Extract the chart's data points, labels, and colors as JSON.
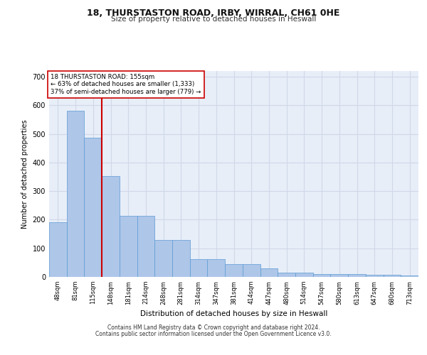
{
  "title1": "18, THURSTASTON ROAD, IRBY, WIRRAL, CH61 0HE",
  "title2": "Size of property relative to detached houses in Heswall",
  "xlabel": "Distribution of detached houses by size in Heswall",
  "ylabel": "Number of detached properties",
  "footnote1": "Contains HM Land Registry data © Crown copyright and database right 2024.",
  "footnote2": "Contains public sector information licensed under the Open Government Licence v3.0.",
  "categories": [
    "48sqm",
    "81sqm",
    "115sqm",
    "148sqm",
    "181sqm",
    "214sqm",
    "248sqm",
    "281sqm",
    "314sqm",
    "347sqm",
    "381sqm",
    "414sqm",
    "447sqm",
    "480sqm",
    "514sqm",
    "547sqm",
    "580sqm",
    "613sqm",
    "647sqm",
    "680sqm",
    "713sqm"
  ],
  "values": [
    192,
    580,
    487,
    352,
    214,
    214,
    130,
    130,
    63,
    63,
    44,
    44,
    30,
    15,
    15,
    10,
    10,
    10,
    8,
    8,
    5
  ],
  "bar_color": "#aec6e8",
  "bar_edge_color": "#5b9bd5",
  "vline_color": "#cc0000",
  "annotation_text": "18 THURSTASTON ROAD: 155sqm\n← 63% of detached houses are smaller (1,333)\n37% of semi-detached houses are larger (779) →",
  "annotation_box_color": "#ffffff",
  "annotation_box_edge": "#cc0000",
  "ylim": [
    0,
    720
  ],
  "yticks": [
    0,
    100,
    200,
    300,
    400,
    500,
    600,
    700
  ],
  "grid_color": "#d0d8e8",
  "plot_bg_color": "#e8eef8"
}
